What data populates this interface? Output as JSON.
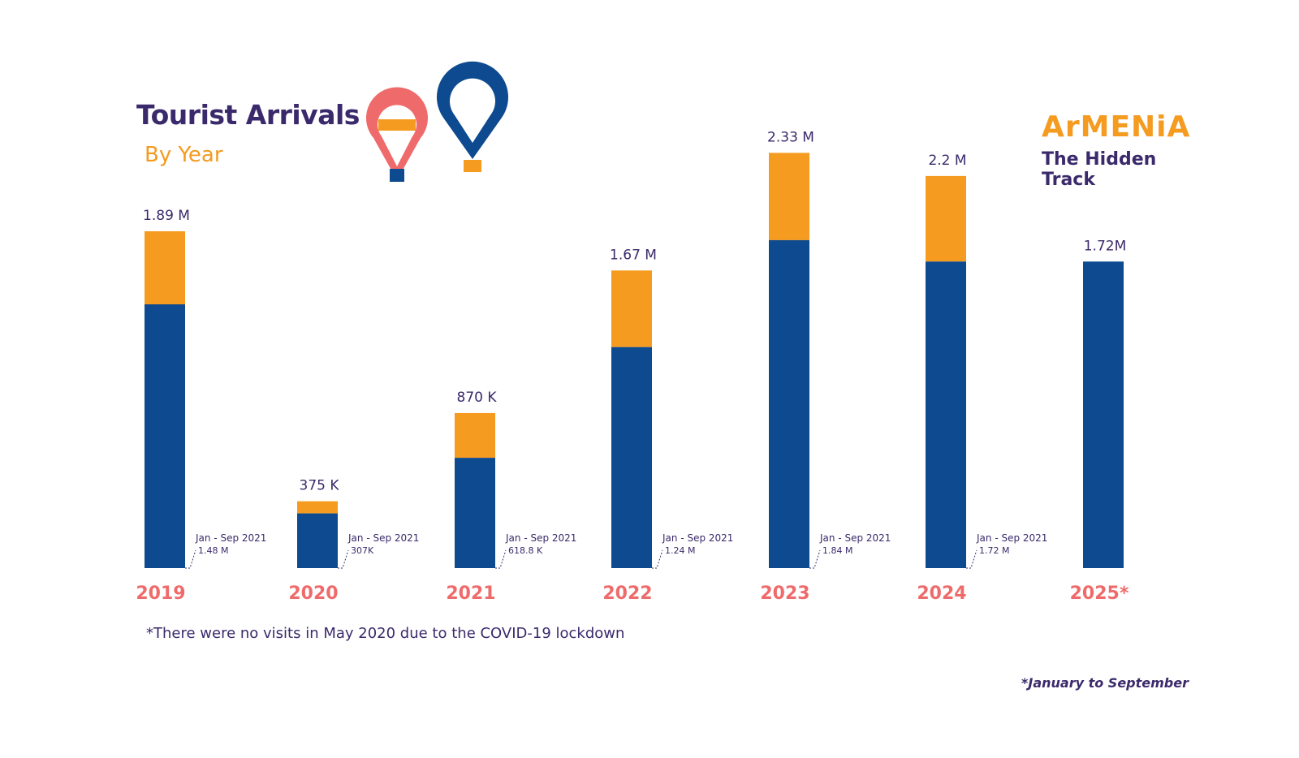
{
  "header": {
    "title": "Tourist Arrivals",
    "subtitle": "By Year"
  },
  "logo": {
    "line1": "ArMENiA",
    "line2": "The Hidden",
    "line3": "Track"
  },
  "footnotes": {
    "covid": "*There were no visits in May 2020 due to the COVID-19 lockdown",
    "period": "*January to September"
  },
  "colors": {
    "jan_sep": "#0d4a8f",
    "full_year_remainder": "#f49b20",
    "year_label": "#ef6b6b",
    "text": "#3b2a6b"
  },
  "chart_data": {
    "type": "bar",
    "stacked": true,
    "title": "Tourist Arrivals",
    "subtitle": "By Year",
    "categories": [
      "2019",
      "2020",
      "2021",
      "2022",
      "2023",
      "2024",
      "2025*"
    ],
    "totals_millions": [
      1.89,
      0.375,
      0.87,
      1.67,
      2.33,
      2.2,
      1.72
    ],
    "total_labels": [
      "1.89 M",
      "375 K",
      "870 K",
      "1.67 M",
      "2.33 M",
      "2.2 M",
      "1.72M"
    ],
    "jan_sep_millions": [
      1.48,
      0.307,
      0.6188,
      1.24,
      1.84,
      1.72,
      1.72
    ],
    "annotations": [
      {
        "label": "Jan - Sep 2021",
        "value": "1.48 M"
      },
      {
        "label": "Jan - Sep 2021",
        "value": "307K"
      },
      {
        "label": "Jan - Sep 2021",
        "value": "618.8 K"
      },
      {
        "label": "Jan - Sep 2021",
        "value": "1.24 M"
      },
      {
        "label": "Jan - Sep 2021",
        "value": "1.84 M"
      },
      {
        "label": "Jan - Sep 2021",
        "value": "1.72 M"
      },
      null
    ],
    "grid": false,
    "legend": "none"
  }
}
